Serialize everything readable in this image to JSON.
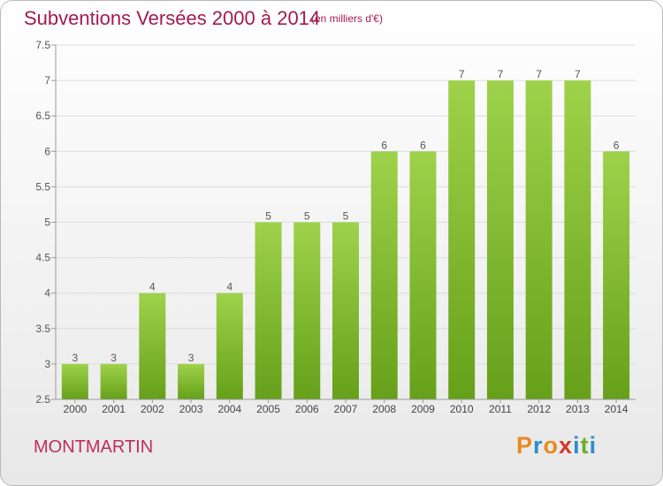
{
  "header": {
    "title": "Subventions Versées 2000 à 2014",
    "subtitle": "(en milliers d'€)"
  },
  "footer": {
    "place": "MONTMARTIN",
    "logo_letters": [
      "P",
      "r",
      "o",
      "x",
      "i",
      "t",
      "i"
    ]
  },
  "colors": {
    "title": "#a21b52",
    "bar_light": "#9fd24b",
    "bar_dark": "#66a01a",
    "grid": "#dcdcdc",
    "axis": "#9a9a9a",
    "logo": [
      "#e98a1f",
      "#2f8ccd",
      "#e98a1f",
      "#d43a2a",
      "#2f8ccd",
      "#6ab02a",
      "#2f8ccd"
    ]
  },
  "chart_data": {
    "type": "bar",
    "categories": [
      "2000",
      "2001",
      "2002",
      "2003",
      "2004",
      "2005",
      "2006",
      "2007",
      "2008",
      "2009",
      "2010",
      "2011",
      "2012",
      "2013",
      "2014"
    ],
    "values": [
      3,
      3,
      4,
      3,
      4,
      5,
      5,
      5,
      6,
      6,
      7,
      7,
      7,
      7,
      6
    ],
    "data_labels": [
      "3",
      "3",
      "4",
      "3",
      "4",
      "5",
      "5",
      "5",
      "6",
      "6",
      "7",
      "7",
      "7",
      "7",
      "6"
    ],
    "ylim": [
      2.5,
      7.5
    ],
    "yticks": [
      2.5,
      3,
      3.5,
      4,
      4.5,
      5,
      5.5,
      6,
      6.5,
      7,
      7.5
    ],
    "ytick_labels": [
      "2.5",
      "3",
      "3.5",
      "4",
      "4.5",
      "5",
      "5.5",
      "6",
      "6.5",
      "7",
      "7.5"
    ],
    "grid": true,
    "legend": "none"
  }
}
